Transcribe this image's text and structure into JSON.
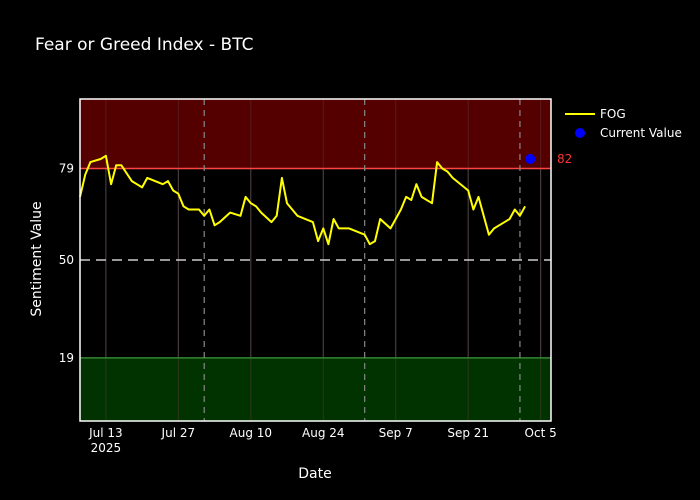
{
  "chart_data": {
    "type": "line",
    "title": "Fear or Greed Index - BTC",
    "xlabel": "Date",
    "ylabel": "Sentiment Value",
    "x_range": [
      "2025-07-08",
      "2025-10-07"
    ],
    "y_range": [
      -1,
      101
    ],
    "x_ticks": [
      {
        "date": "2025-07-13",
        "label": "Jul 13",
        "sublabel": "2025"
      },
      {
        "date": "2025-07-27",
        "label": "Jul 27"
      },
      {
        "date": "2025-08-10",
        "label": "Aug 10"
      },
      {
        "date": "2025-08-24",
        "label": "Aug 24"
      },
      {
        "date": "2025-09-07",
        "label": "Sep 7"
      },
      {
        "date": "2025-09-21",
        "label": "Sep 21"
      },
      {
        "date": "2025-10-05",
        "label": "Oct 5"
      }
    ],
    "y_ticks": [
      19,
      50,
      79
    ],
    "thresholds": {
      "greed": 79,
      "neutral": 50,
      "fear": 19
    },
    "vertical_markers": [
      "2025-08-01",
      "2025-09-01",
      "2025-10-01"
    ],
    "series": [
      {
        "name": "FOG",
        "color": "#ffff00",
        "x": [
          "2025-07-08",
          "2025-07-09",
          "2025-07-10",
          "2025-07-12",
          "2025-07-13",
          "2025-07-14",
          "2025-07-15",
          "2025-07-16",
          "2025-07-18",
          "2025-07-19",
          "2025-07-20",
          "2025-07-21",
          "2025-07-24",
          "2025-07-25",
          "2025-07-26",
          "2025-07-27",
          "2025-07-28",
          "2025-07-29",
          "2025-07-31",
          "2025-08-01",
          "2025-08-02",
          "2025-08-03",
          "2025-08-04",
          "2025-08-06",
          "2025-08-08",
          "2025-08-09",
          "2025-08-10",
          "2025-08-11",
          "2025-08-12",
          "2025-08-14",
          "2025-08-15",
          "2025-08-16",
          "2025-08-17",
          "2025-08-18",
          "2025-08-19",
          "2025-08-22",
          "2025-08-23",
          "2025-08-24",
          "2025-08-25",
          "2025-08-26",
          "2025-08-27",
          "2025-08-29",
          "2025-09-01",
          "2025-09-02",
          "2025-09-03",
          "2025-09-04",
          "2025-09-06",
          "2025-09-07",
          "2025-09-08",
          "2025-09-09",
          "2025-09-10",
          "2025-09-11",
          "2025-09-12",
          "2025-09-14",
          "2025-09-15",
          "2025-09-16",
          "2025-09-17",
          "2025-09-18",
          "2025-09-21",
          "2025-09-22",
          "2025-09-23",
          "2025-09-25",
          "2025-09-26",
          "2025-09-27",
          "2025-09-29",
          "2025-09-30",
          "2025-10-01",
          "2025-10-02"
        ],
        "values": [
          70,
          77,
          81,
          82,
          83,
          74,
          80,
          80,
          75,
          74,
          73,
          76,
          74,
          75,
          72,
          71,
          67,
          66,
          66,
          64,
          66,
          61,
          62,
          65,
          64,
          70,
          68,
          67,
          65,
          62,
          64,
          76,
          68,
          66,
          64,
          62,
          56,
          60,
          55,
          63,
          60,
          60,
          58,
          55,
          56,
          63,
          60,
          63,
          66,
          70,
          69,
          74,
          70,
          68,
          81,
          79,
          78,
          76,
          72,
          66,
          70,
          58,
          60,
          61,
          63,
          66,
          64,
          67
        ]
      }
    ],
    "current_value": {
      "name": "Current Value",
      "date": "2025-10-03",
      "value": 82,
      "label": "82",
      "color": "#0000ff"
    },
    "legend": {
      "placement": "top-right",
      "entries": [
        "FOG",
        "Current Value"
      ]
    },
    "colors": {
      "background": "#000000",
      "greed_zone": "#550000",
      "fear_zone": "#003300",
      "greed_line": "#ff4444",
      "fear_line": "#338833",
      "neutral_line": "#cccccc",
      "grid": "#444444"
    }
  }
}
